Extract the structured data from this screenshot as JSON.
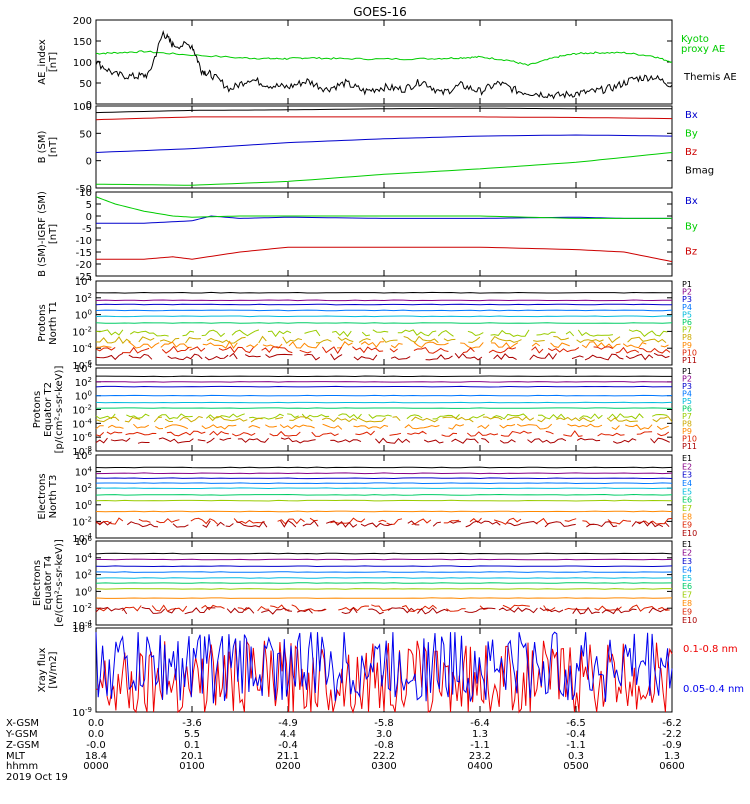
{
  "title": "GOES-16",
  "chart_data": [
    {
      "type": "line",
      "ylabel": [
        "AE_index",
        "[nT]"
      ],
      "ylim": [
        0,
        200
      ],
      "log": false,
      "yticks": [
        "0",
        "50",
        "100",
        "150",
        "200"
      ],
      "series": [
        {
          "name": "Kyoto proxy AE",
          "color": "#00cc00",
          "x": [
            0,
            0.2,
            0.5,
            0.9,
            1.5,
            1.8,
            2.0,
            2.2,
            2.5,
            3.0,
            3.5,
            3.8,
            4.0,
            4.3,
            4.5,
            4.8,
            5.0,
            5.2,
            5.5,
            5.8,
            6.0
          ],
          "y": [
            120,
            122,
            125,
            118,
            110,
            108,
            108,
            110,
            108,
            107,
            108,
            110,
            112,
            104,
            92,
            112,
            120,
            122,
            122,
            114,
            100
          ]
        },
        {
          "name": "Themis AE",
          "color": "#000000",
          "x": [
            0,
            0.2,
            0.4,
            0.55,
            0.7,
            0.8,
            1.0,
            1.1,
            1.2,
            1.4,
            1.6,
            1.8,
            2.0,
            2.2,
            2.4,
            2.6,
            2.8,
            3.0,
            3.2,
            3.4,
            3.6,
            3.8,
            4.0,
            4.2,
            4.4,
            4.6,
            4.8,
            5.0,
            5.2,
            5.4,
            5.6,
            5.8,
            6.0
          ],
          "y": [
            100,
            70,
            65,
            70,
            170,
            140,
            140,
            80,
            70,
            35,
            60,
            45,
            40,
            55,
            35,
            50,
            30,
            40,
            35,
            55,
            25,
            45,
            30,
            50,
            30,
            25,
            20,
            25,
            30,
            40,
            60,
            65,
            45
          ]
        }
      ],
      "legend": [
        "Kyoto",
        "proxy AE",
        "Themis AE"
      ]
    },
    {
      "type": "line",
      "ylabel": [
        "B (SM)",
        "[nT]"
      ],
      "ylim": [
        -50,
        100
      ],
      "log": false,
      "yticks": [
        "-50",
        "0",
        "50",
        "100"
      ],
      "series": [
        {
          "name": "Bx",
          "color": "#0000cc",
          "x": [
            0,
            1,
            2,
            3,
            4,
            5,
            6
          ],
          "y": [
            15,
            22,
            33,
            40,
            45,
            47,
            45
          ]
        },
        {
          "name": "By",
          "color": "#00cc00",
          "x": [
            0,
            1,
            2,
            3,
            4,
            5,
            6
          ],
          "y": [
            -43,
            -45,
            -38,
            -25,
            -15,
            -3,
            15
          ]
        },
        {
          "name": "Bz",
          "color": "#cc0000",
          "x": [
            0,
            1,
            2,
            3,
            4,
            5,
            6
          ],
          "y": [
            75,
            80,
            80,
            80,
            80,
            79,
            77
          ]
        },
        {
          "name": "Bmag",
          "color": "#000000",
          "x": [
            0,
            1,
            2,
            3,
            4,
            5,
            6
          ],
          "y": [
            88,
            92,
            93,
            95,
            96,
            95,
            95
          ]
        }
      ],
      "legend": [
        "Bx",
        "By",
        "Bz",
        "Bmag"
      ]
    },
    {
      "type": "line",
      "ylabel": [
        "B (SM)-IGRF (SM)",
        "[nT]"
      ],
      "ylim": [
        -25,
        10
      ],
      "log": false,
      "yticks": [
        "-25",
        "-20",
        "-15",
        "-10",
        "-5",
        "0",
        "5",
        "10"
      ],
      "series": [
        {
          "name": "Bx",
          "color": "#0000cc",
          "x": [
            0,
            0.5,
            1,
            1.2,
            1.5,
            2,
            3,
            4,
            5,
            5.5,
            6
          ],
          "y": [
            -3,
            -3,
            -2,
            0,
            -1,
            -0.5,
            -1,
            -1,
            -0.5,
            -1,
            -1
          ]
        },
        {
          "name": "By",
          "color": "#00cc00",
          "x": [
            0,
            0.2,
            0.5,
            0.8,
            1,
            1.5,
            2,
            3,
            4,
            5,
            5.5,
            6
          ],
          "y": [
            8,
            5,
            2,
            0,
            -0.5,
            0,
            0,
            0,
            0,
            -1,
            -1,
            -1
          ]
        },
        {
          "name": "Bz",
          "color": "#cc0000",
          "x": [
            0,
            0.5,
            0.8,
            1,
            1.5,
            2,
            3,
            4,
            5,
            5.5,
            6
          ],
          "y": [
            -18,
            -18,
            -17,
            -18,
            -15,
            -13,
            -13,
            -13,
            -14,
            -15,
            -19
          ]
        }
      ],
      "legend": [
        "Bx",
        "By",
        "Bz"
      ]
    },
    {
      "type": "line",
      "ylabel": [
        "Protons",
        "North T1"
      ],
      "ylim": [
        -6,
        4
      ],
      "log": true,
      "yticks": [
        "10-6",
        "10-4",
        "10-2",
        "100",
        "102",
        "104"
      ],
      "series": [
        {
          "name": "P1",
          "color": "#000000",
          "level": 2.6
        },
        {
          "name": "P2",
          "color": "#880088",
          "level": 1.7
        },
        {
          "name": "P3",
          "color": "#0000cc",
          "level": 1.2
        },
        {
          "name": "P4",
          "color": "#0077ff",
          "level": 0.5
        },
        {
          "name": "P5",
          "color": "#00bbdd",
          "level": -0.2
        },
        {
          "name": "P6",
          "color": "#00cc66",
          "level": -1.0
        },
        {
          "name": "P7",
          "color": "#99cc00",
          "level": -2.2,
          "noisy": true
        },
        {
          "name": "P8",
          "color": "#ccaa00",
          "level": -3.0,
          "noisy": true
        },
        {
          "name": "P9",
          "color": "#ff8800",
          "level": -3.6,
          "noisy": true
        },
        {
          "name": "P10",
          "color": "#dd2200",
          "level": -4.2,
          "noisy": true
        },
        {
          "name": "P11",
          "color": "#aa0000",
          "level": -5.0,
          "noisy": true
        }
      ],
      "legend": [
        "P1",
        "P2",
        "P3",
        "P4",
        "P5",
        "P6",
        "P7",
        "P8",
        "P9",
        "P10",
        "P11"
      ]
    },
    {
      "type": "line",
      "ylabel": [
        "Protons",
        "Equator T2",
        "[p/(cm²-s-sr-keV)]"
      ],
      "ylim": [
        -8,
        4
      ],
      "log": true,
      "yticks": [
        "10-8",
        "10-6",
        "10-4",
        "10-2",
        "100",
        "102",
        "104"
      ],
      "series": [
        {
          "name": "P1",
          "color": "#000000",
          "level": 2.8
        },
        {
          "name": "P2",
          "color": "#880088",
          "level": 2.0
        },
        {
          "name": "P3",
          "color": "#0000cc",
          "level": 1.3
        },
        {
          "name": "P4",
          "color": "#0077ff",
          "level": 0.0
        },
        {
          "name": "P5",
          "color": "#00bbdd",
          "level": -1.0
        },
        {
          "name": "P6",
          "color": "#00cc66",
          "level": -1.8
        },
        {
          "name": "P7",
          "color": "#99cc00",
          "level": -3.0,
          "noisy": true
        },
        {
          "name": "P8",
          "color": "#ccaa00",
          "level": -3.4,
          "noisy": true
        },
        {
          "name": "P9",
          "color": "#ff8800",
          "level": -4.5,
          "noisy": true
        },
        {
          "name": "P10",
          "color": "#dd2200",
          "level": -5.5,
          "noisy": true
        },
        {
          "name": "P11",
          "color": "#aa0000",
          "level": -6.5,
          "noisy": true
        }
      ],
      "legend": [
        "P1",
        "P2",
        "P3",
        "P4",
        "P5",
        "P6",
        "P7",
        "P8",
        "P9",
        "P10",
        "P11"
      ]
    },
    {
      "type": "line",
      "ylabel": [
        "Electrons",
        "North T3"
      ],
      "ylim": [
        -4,
        6
      ],
      "log": true,
      "yticks": [
        "10-4",
        "10-2",
        "100",
        "102",
        "104",
        "106"
      ],
      "series": [
        {
          "name": "E1",
          "color": "#000000",
          "level": 4.5
        },
        {
          "name": "E2",
          "color": "#880088",
          "level": 3.8
        },
        {
          "name": "E3",
          "color": "#0000cc",
          "level": 3.2
        },
        {
          "name": "E4",
          "color": "#0077ff",
          "level": 2.6
        },
        {
          "name": "E5",
          "color": "#00bbdd",
          "level": 2.0
        },
        {
          "name": "E6",
          "color": "#00cc66",
          "level": 1.2
        },
        {
          "name": "E7",
          "color": "#99cc00",
          "level": 0.5
        },
        {
          "name": "E8",
          "color": "#ff8800",
          "level": -0.8
        },
        {
          "name": "E9",
          "color": "#dd2200",
          "level": -2.0,
          "noisy": true
        },
        {
          "name": "E10",
          "color": "#aa0000",
          "level": -2.3,
          "noisy": true
        }
      ],
      "legend": [
        "E1",
        "E2",
        "E3",
        "E4",
        "E5",
        "E6",
        "E7",
        "E8",
        "E9",
        "E10"
      ]
    },
    {
      "type": "line",
      "ylabel": [
        "Electrons",
        "Equator T4",
        "[e/(cm²-s-sr-keV)]"
      ],
      "ylim": [
        -4,
        6
      ],
      "log": true,
      "yticks": [
        "10-4",
        "10-2",
        "100",
        "102",
        "104",
        "106"
      ],
      "series": [
        {
          "name": "E1",
          "color": "#000000",
          "level": 4.5
        },
        {
          "name": "E2",
          "color": "#880088",
          "level": 3.8
        },
        {
          "name": "E3",
          "color": "#0000cc",
          "level": 3.0
        },
        {
          "name": "E4",
          "color": "#0077ff",
          "level": 2.3
        },
        {
          "name": "E5",
          "color": "#00bbdd",
          "level": 1.6
        },
        {
          "name": "E6",
          "color": "#00cc66",
          "level": 1.0
        },
        {
          "name": "E7",
          "color": "#99cc00",
          "level": 0.3
        },
        {
          "name": "E8",
          "color": "#ff8800",
          "level": -0.8
        },
        {
          "name": "E9",
          "color": "#dd2200",
          "level": -2.0,
          "noisy": true
        },
        {
          "name": "E10",
          "color": "#aa0000",
          "level": -2.3,
          "noisy": true
        }
      ],
      "legend": [
        "E1",
        "E2",
        "E3",
        "E4",
        "E5",
        "E6",
        "E7",
        "E8",
        "E9",
        "E10"
      ]
    },
    {
      "type": "line",
      "ylabel": [
        "Xray flux",
        "[W/m2]"
      ],
      "ylim": [
        -9,
        -8
      ],
      "log": true,
      "yticks": [
        "10-9",
        "10-8"
      ],
      "series": [
        {
          "name": "0.1-0.8 nm",
          "color": "#ee0000",
          "noisy": true,
          "level": -8.6
        },
        {
          "name": "0.05-0.4 nm",
          "color": "#0000ee",
          "noisy": true,
          "level": -8.45
        }
      ],
      "legend": [
        "0.1-0.8 nm",
        "0.05-0.4 nm"
      ]
    }
  ],
  "time_axis": {
    "row_labels": [
      "X-GSM",
      "Y-GSM",
      "Z-GSM",
      "MLT",
      "hhmm"
    ],
    "date": "2019 Oct 19",
    "columns": [
      {
        "values": [
          "0.0",
          "0.0",
          "-0.0",
          "18.4",
          "0000"
        ]
      },
      {
        "values": [
          "-3.6",
          "5.5",
          "0.1",
          "20.1",
          "0100"
        ]
      },
      {
        "values": [
          "-4.9",
          "4.4",
          "-0.4",
          "21.1",
          "0200"
        ]
      },
      {
        "values": [
          "-5.8",
          "3.0",
          "-0.8",
          "22.2",
          "0300"
        ]
      },
      {
        "values": [
          "-6.4",
          "1.3",
          "-1.1",
          "23.2",
          "0400"
        ]
      },
      {
        "values": [
          "-6.5",
          "-0.4",
          "-1.1",
          "0.3",
          "0500"
        ]
      },
      {
        "values": [
          "-6.2",
          "-2.2",
          "-0.9",
          "1.3",
          "0600"
        ]
      }
    ]
  }
}
